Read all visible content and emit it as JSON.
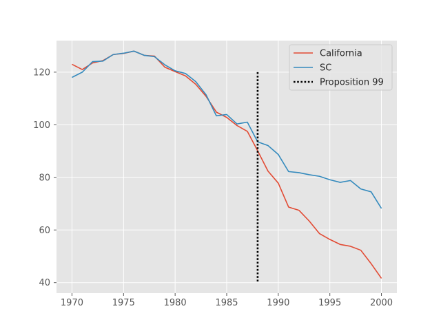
{
  "chart_data": {
    "type": "line",
    "title": "",
    "xlabel": "",
    "ylabel": "",
    "xlim": [
      1968.5,
      2001.5
    ],
    "ylim": [
      36,
      132
    ],
    "xticks": [
      1970,
      1975,
      1980,
      1985,
      1990,
      1995,
      2000
    ],
    "yticks": [
      40,
      60,
      80,
      100,
      120
    ],
    "grid": true,
    "legend": "top-right",
    "x": [
      1970,
      1971,
      1972,
      1973,
      1974,
      1975,
      1976,
      1977,
      1978,
      1979,
      1980,
      1981,
      1982,
      1983,
      1984,
      1985,
      1986,
      1987,
      1988,
      1989,
      1990,
      1991,
      1992,
      1993,
      1994,
      1995,
      1996,
      1997,
      1998,
      1999,
      2000
    ],
    "series": [
      {
        "name": "California",
        "color": "#E24A33",
        "values": [
          123.0,
          121.0,
          123.5,
          124.4,
          126.7,
          127.1,
          128.0,
          126.4,
          126.1,
          121.9,
          120.2,
          118.6,
          115.4,
          110.8,
          104.8,
          102.8,
          99.7,
          97.5,
          90.1,
          82.4,
          77.8,
          68.7,
          67.5,
          63.4,
          58.6,
          56.4,
          54.5,
          53.8,
          52.3,
          47.2,
          41.6
        ]
      },
      {
        "name": "SC",
        "color": "#348ABD",
        "values": [
          118.0,
          120.0,
          124.0,
          124.2,
          126.7,
          127.2,
          128.0,
          126.4,
          125.9,
          122.8,
          120.5,
          119.5,
          116.4,
          111.4,
          103.4,
          103.9,
          100.3,
          101.0,
          93.5,
          92.1,
          88.7,
          82.2,
          81.8,
          81.0,
          80.4,
          79.1,
          78.1,
          78.8,
          75.6,
          74.5,
          68.2
        ]
      }
    ],
    "vline": {
      "name": "Proposition 99",
      "x": 1988,
      "y_from": 40,
      "y_to": 120,
      "color": "#000000",
      "style": "dotted"
    },
    "colors": {
      "axes_bg": "#E5E5E5",
      "grid": "#FFFFFF",
      "tick_text": "#555555"
    }
  }
}
